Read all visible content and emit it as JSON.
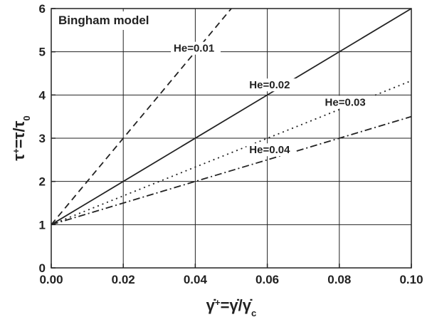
{
  "chart_data": {
    "type": "line",
    "title": "Bingham model",
    "x_label": [
      "γ̇",
      "+",
      "=γ̇/γ̇",
      "c"
    ],
    "y_label": [
      "τ",
      "+",
      "=τ/τ",
      "0"
    ],
    "xlim": [
      0,
      0.1
    ],
    "xticks": [
      {
        "value": 0,
        "label": "0.00"
      },
      {
        "value": 0.02,
        "label": "0.02"
      },
      {
        "value": 0.04,
        "label": "0.04"
      },
      {
        "value": 0.06,
        "label": "0.06"
      },
      {
        "value": 0.08,
        "label": "0.08"
      },
      {
        "value": 0.1,
        "label": "0.10"
      }
    ],
    "ylim": [
      0,
      6
    ],
    "yticks": [
      0,
      1,
      2,
      3,
      4,
      5,
      6
    ],
    "grid": true,
    "series": [
      {
        "name": "He=0.01",
        "color": "#222222",
        "linestyle": "dashed",
        "x": [
          0,
          0.05
        ],
        "values": [
          1,
          6
        ]
      },
      {
        "name": "He=0.02",
        "color": "#222222",
        "linestyle": "solid",
        "x": [
          0,
          0.1
        ],
        "values": [
          1,
          6
        ]
      },
      {
        "name": "He=0.03",
        "color": "#222222",
        "linestyle": "dotted",
        "x": [
          0,
          0.1
        ],
        "values": [
          1,
          4.33
        ]
      },
      {
        "name": "He=0.04",
        "color": "#222222",
        "linestyle": "dashdot",
        "x": [
          0,
          0.1
        ],
        "values": [
          1,
          3.5
        ]
      }
    ]
  }
}
